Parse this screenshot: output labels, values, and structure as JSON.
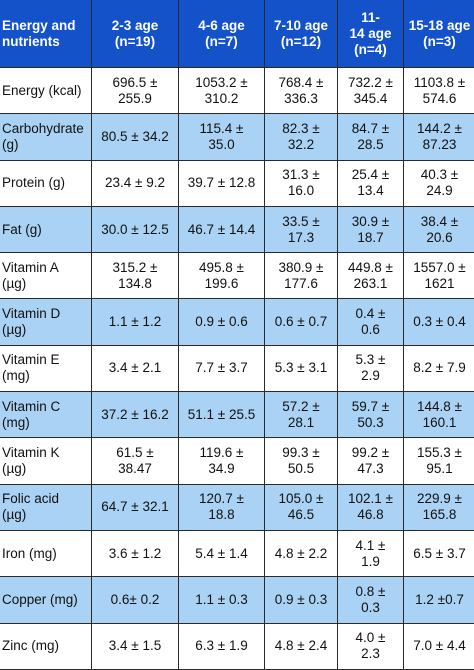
{
  "table": {
    "headers": [
      {
        "line1": "Energy and",
        "line2": "nutrients"
      },
      {
        "line1": "2-3 age",
        "line2": "(n=19)"
      },
      {
        "line1": "4-6 age",
        "line2": "(n=7)"
      },
      {
        "line1": "7-10 age",
        "line2": "(n=12)"
      },
      {
        "line1": "11-",
        "line2": "14 age",
        "line3": "(n=4)"
      },
      {
        "line1": "15-18 age",
        "line2": "(n=3)"
      }
    ],
    "rows": [
      {
        "label": [
          "Energy (kcal)"
        ],
        "cells": [
          [
            "696.5 ±",
            "255.9"
          ],
          [
            "1053.2 ±",
            "310.2"
          ],
          [
            "768.4 ±",
            "336.3"
          ],
          [
            "732.2 ±",
            "345.4"
          ],
          [
            "1103.8 ±",
            "574.6"
          ]
        ]
      },
      {
        "label": [
          "Carbohydrate",
          "(g)"
        ],
        "cells": [
          [
            "80.5 ± 34.2"
          ],
          [
            "115.4 ±",
            "35.0"
          ],
          [
            "82.3 ±",
            "32.2"
          ],
          [
            "84.7 ±",
            "28.5"
          ],
          [
            "144.2 ±",
            "87.23"
          ]
        ]
      },
      {
        "label": [
          "Protein (g)"
        ],
        "cells": [
          [
            "23.4 ± 9.2"
          ],
          [
            "39.7 ± 12.8"
          ],
          [
            "31.3 ±",
            "16.0"
          ],
          [
            "25.4 ±",
            "13.4"
          ],
          [
            "40.3 ±",
            "24.9"
          ]
        ]
      },
      {
        "label": [
          "Fat (g)"
        ],
        "cells": [
          [
            "30.0 ± 12.5"
          ],
          [
            "46.7 ± 14.4"
          ],
          [
            "33.5 ±",
            "17.3"
          ],
          [
            "30.9 ±",
            "18.7"
          ],
          [
            "38.4 ±",
            "20.6"
          ]
        ]
      },
      {
        "label": [
          "Vitamin A",
          "(µg)"
        ],
        "cells": [
          [
            "315.2 ±",
            "134.8"
          ],
          [
            "495.8 ±",
            "199.6"
          ],
          [
            "380.9 ±",
            "177.6"
          ],
          [
            "449.8 ±",
            "263.1"
          ],
          [
            "1557.0 ±",
            "1621"
          ]
        ]
      },
      {
        "label": [
          "Vitamin D",
          "(µg)"
        ],
        "cells": [
          [
            "1.1 ± 1.2"
          ],
          [
            "0.9 ± 0.6"
          ],
          [
            "0.6 ± 0.7"
          ],
          [
            "0.4 ±",
            "0.6"
          ],
          [
            "0.3 ± 0.4"
          ]
        ]
      },
      {
        "label": [
          "Vitamin E",
          "(mg)"
        ],
        "cells": [
          [
            "3.4 ± 2.1"
          ],
          [
            "7.7 ± 3.7"
          ],
          [
            "5.3 ± 3.1"
          ],
          [
            "5.3 ±",
            "2.9"
          ],
          [
            "8.2 ± 7.9"
          ]
        ]
      },
      {
        "label": [
          "Vitamin C",
          "(mg)"
        ],
        "cells": [
          [
            "37.2 ± 16.2"
          ],
          [
            "51.1 ± 25.5"
          ],
          [
            "57.2 ±",
            "28.1"
          ],
          [
            "59.7 ±",
            "50.3"
          ],
          [
            "144.8 ±",
            "160.1"
          ]
        ]
      },
      {
        "label": [
          "Vitamin K",
          "(µg)"
        ],
        "cells": [
          [
            "61.5 ±",
            "38.47"
          ],
          [
            "119.6 ±",
            "34.9"
          ],
          [
            "99.3 ±",
            "50.5"
          ],
          [
            "99.2 ±",
            "47.3"
          ],
          [
            "155.3 ±",
            "95.1"
          ]
        ]
      },
      {
        "label": [
          "Folic acid",
          "(µg)"
        ],
        "cells": [
          [
            "64.7 ± 32.1"
          ],
          [
            "120.7 ±",
            "18.8"
          ],
          [
            "105.0 ±",
            "46.5"
          ],
          [
            "102.1 ±",
            "46.8"
          ],
          [
            "229.9 ±",
            "165.8"
          ]
        ]
      },
      {
        "label": [
          "Iron (mg)"
        ],
        "cells": [
          [
            "3.6 ± 1.2"
          ],
          [
            "5.4 ± 1.4"
          ],
          [
            "4.8 ± 2.2"
          ],
          [
            "4.1 ±",
            "1.9"
          ],
          [
            "6.5 ± 3.7"
          ]
        ]
      },
      {
        "label": [
          "Copper (mg)"
        ],
        "cells": [
          [
            "0.6± 0.2"
          ],
          [
            "1.1 ± 0.3"
          ],
          [
            "0.9 ± 0.3"
          ],
          [
            "0.8 ±",
            "0.3"
          ],
          [
            "1.2 ±0.7"
          ]
        ]
      },
      {
        "label": [
          "Zinc (mg)"
        ],
        "cells": [
          [
            "3.4 ± 1.5"
          ],
          [
            "6.3 ± 1.9"
          ],
          [
            "4.8 ± 2.4"
          ],
          [
            "4.0 ±",
            "2.3"
          ],
          [
            "7.0 ± 4.4"
          ]
        ]
      }
    ]
  },
  "colors": {
    "header_bg": "#1452c9",
    "header_text": "#ffffff",
    "alt_row_bg": "#a9d2f4",
    "row_bg": "#ffffff",
    "border": "#2a2a2a"
  }
}
